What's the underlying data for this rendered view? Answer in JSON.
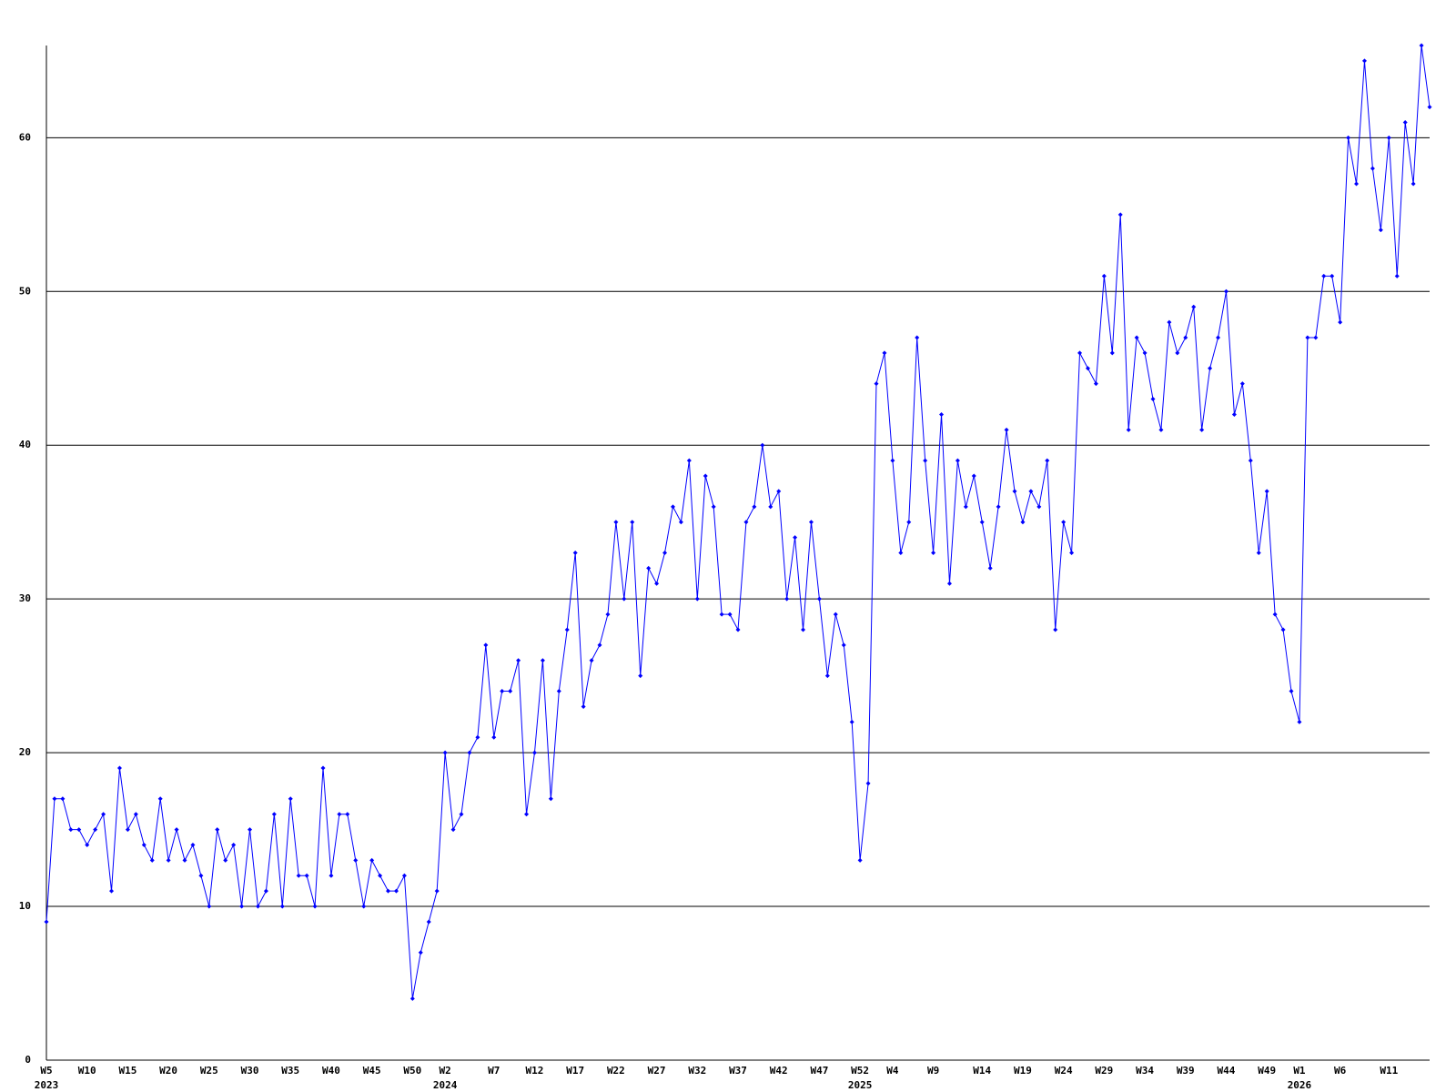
{
  "chart_data": {
    "type": "line",
    "color": "#0000ff",
    "grid": true,
    "ylim": [
      0,
      66
    ],
    "yticks": [
      0,
      10,
      20,
      30,
      40,
      50,
      60
    ],
    "categories": [
      "W5",
      null,
      null,
      null,
      null,
      "W10",
      null,
      null,
      null,
      null,
      "W15",
      null,
      null,
      null,
      null,
      "W20",
      null,
      null,
      null,
      null,
      "W25",
      null,
      null,
      null,
      null,
      "W30",
      null,
      null,
      null,
      null,
      "W35",
      null,
      null,
      null,
      null,
      "W40",
      null,
      null,
      null,
      null,
      "W45",
      null,
      null,
      null,
      null,
      "W50",
      null,
      null,
      null,
      "W2",
      null,
      null,
      null,
      null,
      null,
      "W7",
      null,
      null,
      null,
      null,
      "W12",
      null,
      null,
      null,
      null,
      "W17",
      null,
      null,
      null,
      null,
      "W22",
      null,
      null,
      null,
      null,
      "W27",
      null,
      null,
      null,
      null,
      "W32",
      null,
      null,
      null,
      null,
      "W37",
      null,
      null,
      null,
      null,
      "W42",
      null,
      null,
      null,
      null,
      "W47",
      null,
      null,
      null,
      null,
      "W52",
      null,
      null,
      null,
      "W4",
      null,
      null,
      null,
      null,
      "W9",
      null,
      null,
      null,
      null,
      null,
      "W14",
      null,
      null,
      null,
      null,
      "W19",
      null,
      null,
      null,
      null,
      "W24",
      null,
      null,
      null,
      null,
      "W29",
      null,
      null,
      null,
      null,
      "W34",
      null,
      null,
      null,
      null,
      "W39",
      null,
      null,
      null,
      null,
      "W44",
      null,
      null,
      null,
      null,
      "W49",
      null,
      null,
      null,
      "W1",
      null,
      null,
      null,
      null,
      "W6",
      null,
      null,
      null,
      null,
      null,
      "W11",
      null,
      null,
      null,
      null,
      null
    ],
    "years": [
      "2023",
      null,
      null,
      null,
      null,
      null,
      null,
      null,
      null,
      null,
      null,
      null,
      null,
      null,
      null,
      null,
      null,
      null,
      null,
      null,
      null,
      null,
      null,
      null,
      null,
      null,
      null,
      null,
      null,
      null,
      null,
      null,
      null,
      null,
      null,
      null,
      null,
      null,
      null,
      null,
      null,
      null,
      null,
      null,
      null,
      null,
      null,
      null,
      null,
      "2024",
      null,
      null,
      null,
      null,
      null,
      null,
      null,
      null,
      null,
      null,
      null,
      null,
      null,
      null,
      null,
      null,
      null,
      null,
      null,
      null,
      null,
      null,
      null,
      null,
      null,
      null,
      null,
      null,
      null,
      null,
      null,
      null,
      null,
      null,
      null,
      null,
      null,
      null,
      null,
      null,
      null,
      null,
      null,
      null,
      null,
      null,
      null,
      null,
      null,
      null,
      "2025",
      null,
      null,
      null,
      null,
      null,
      null,
      null,
      null,
      null,
      null,
      null,
      null,
      null,
      null,
      null,
      null,
      null,
      null,
      null,
      null,
      null,
      null,
      null,
      null,
      null,
      null,
      null,
      null,
      null,
      null,
      null,
      null,
      null,
      null,
      null,
      null,
      null,
      null,
      null,
      null,
      null,
      null,
      null,
      null,
      null,
      null,
      null,
      null,
      null,
      null,
      null,
      null,
      null,
      "2026",
      null,
      null,
      null,
      null,
      null,
      null,
      null,
      null,
      null,
      null,
      null,
      null,
      null,
      null,
      null,
      null
    ],
    "values": [
      9,
      17,
      17,
      15,
      15,
      14,
      15,
      16,
      11,
      19,
      15,
      16,
      14,
      13,
      17,
      13,
      15,
      13,
      14,
      12,
      10,
      15,
      13,
      14,
      10,
      15,
      10,
      11,
      16,
      10,
      17,
      12,
      12,
      10,
      19,
      12,
      16,
      16,
      13,
      10,
      13,
      12,
      11,
      11,
      12,
      4,
      7,
      9,
      11,
      20,
      15,
      16,
      20,
      21,
      27,
      21,
      24,
      24,
      26,
      16,
      20,
      26,
      17,
      24,
      28,
      33,
      23,
      26,
      27,
      29,
      35,
      30,
      35,
      25,
      32,
      31,
      33,
      36,
      35,
      39,
      30,
      38,
      36,
      29,
      29,
      28,
      35,
      36,
      40,
      36,
      37,
      30,
      34,
      28,
      35,
      30,
      25,
      29,
      27,
      22,
      13,
      18,
      44,
      46,
      39,
      33,
      35,
      47,
      39,
      33,
      42,
      31,
      39,
      36,
      38,
      35,
      32,
      36,
      41,
      37,
      35,
      37,
      36,
      39,
      28,
      35,
      33,
      46,
      45,
      44,
      51,
      46,
      55,
      41,
      47,
      46,
      43,
      41,
      48,
      46,
      47,
      49,
      41,
      45,
      47,
      50,
      42,
      44,
      39,
      33,
      37,
      29,
      28,
      24,
      22,
      47,
      47,
      51,
      51,
      48,
      60,
      57,
      65,
      58,
      54,
      60,
      51,
      61,
      57,
      66,
      62
    ]
  }
}
